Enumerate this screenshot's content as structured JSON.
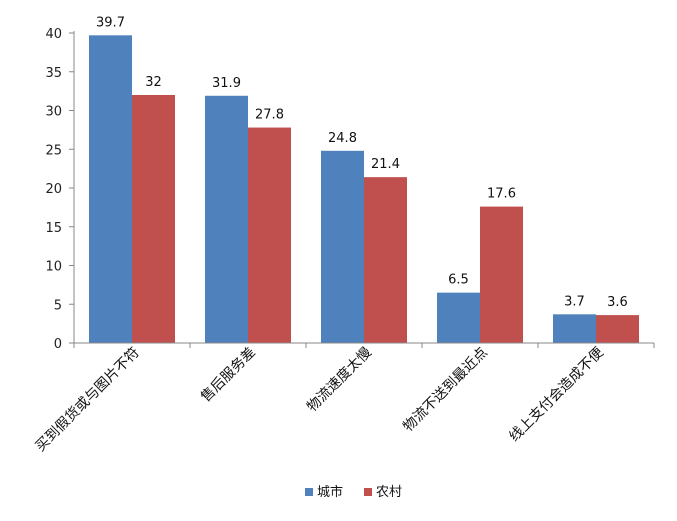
{
  "chart_data": {
    "type": "bar",
    "title": "",
    "xlabel": "",
    "ylabel": "",
    "categories": [
      "买到假货或与图片不符",
      "售后服务差",
      "物流速度太慢",
      "物流不送到最近点",
      "线上支付会造成不便"
    ],
    "series": [
      {
        "name": "城市",
        "color": "#4f81bd",
        "values": [
          39.7,
          31.9,
          24.8,
          6.5,
          3.7
        ]
      },
      {
        "name": "农村",
        "color": "#c0504d",
        "values": [
          32,
          27.8,
          21.4,
          17.6,
          3.6
        ]
      }
    ],
    "ylim": [
      0,
      40
    ],
    "yticks": [
      0,
      5,
      10,
      15,
      20,
      25,
      30,
      35,
      40
    ],
    "grid": false,
    "legend": "bottom"
  }
}
